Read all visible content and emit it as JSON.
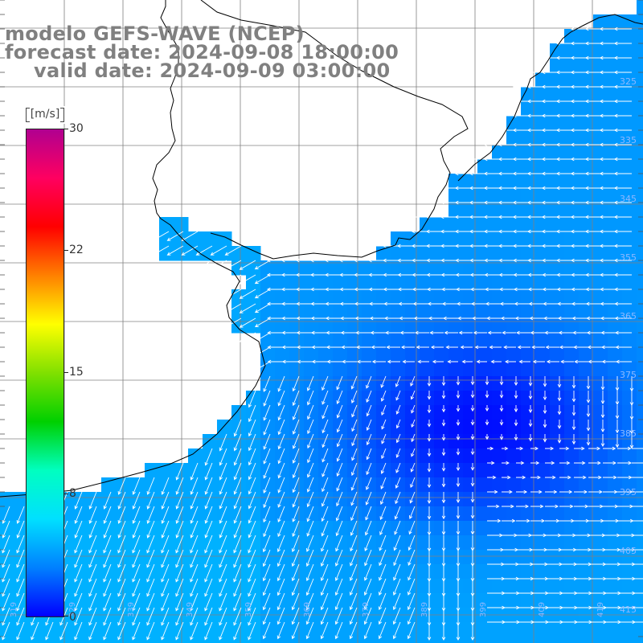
{
  "titles": {
    "line1": "modelo GEFS-WAVE (NCEP)",
    "line2": "forecast date: 2024-09-08 18:00:00",
    "line3": "valid date: 2024-09-09 03:00:00"
  },
  "colorbar": {
    "unit": "[m/s]",
    "ticks": [
      "30",
      "22",
      "15",
      "8",
      "0"
    ],
    "min": 0,
    "max": 30,
    "colors": [
      "#0000ff",
      "#0080ff",
      "#00e0ff",
      "#00ffc0",
      "#00d000",
      "#80e000",
      "#ffff00",
      "#ff8000",
      "#ff0000",
      "#ff0060",
      "#b00090"
    ]
  },
  "map": {
    "ocean_color_low": "#0000ff",
    "ocean_color_mid": "#0050ff",
    "ocean_color_high": "#00b0ff",
    "land_color": "#ffffff",
    "grid_color": "#808080",
    "coast_color": "#000000",
    "arrow_color": "#ffffff",
    "right_axis_labels": [
      "325",
      "335",
      "345",
      "355",
      "365",
      "375",
      "385",
      "395",
      "405",
      "415"
    ],
    "bottom_axis_labels": [
      "319",
      "329",
      "339",
      "349",
      "359",
      "369",
      "379",
      "389",
      "399",
      "409",
      "419"
    ]
  }
}
